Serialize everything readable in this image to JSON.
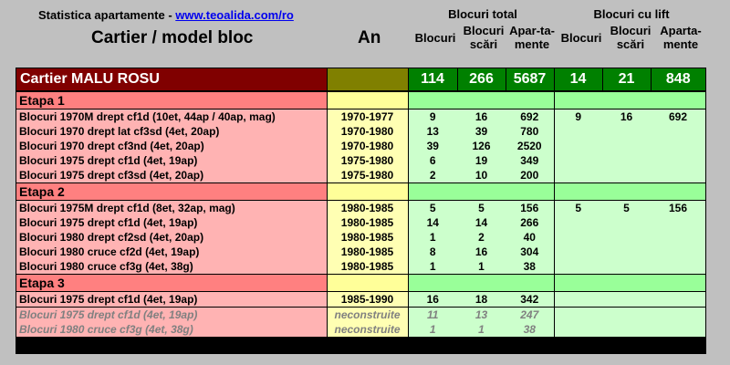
{
  "header": {
    "site_prefix": "Statistica apartamente - ",
    "site_link": "www.teoalida.com/ro",
    "col_title": "Cartier / model bloc",
    "year_title": "An",
    "group_total": "Blocuri total",
    "group_lift": "Blocuri cu lift",
    "sub": {
      "blocuri": "Blocuri",
      "blocuri_scari_1": "Blocuri",
      "blocuri_scari_2": "scări",
      "apartamente_1": "Apar-ta-",
      "apartamente_2": "mente",
      "lift_blocuri": "Blocuri",
      "lift_scari_1": "Blocuri",
      "lift_scari_2": "scări",
      "lift_apart_1": "Aparta-",
      "lift_apart_2": "mente"
    }
  },
  "district": {
    "name": "Cartier MALU ROSU",
    "blocuri": "114",
    "scari": "266",
    "apartamente": "5687",
    "lift_blocuri": "14",
    "lift_scari": "21",
    "lift_apartamente": "848"
  },
  "stages": [
    {
      "name": "Etapa 1",
      "rows": [
        {
          "name": "Blocuri 1970M drept cf1d (10et, 44ap / 40ap, mag)",
          "year": "1970-1977",
          "b": "9",
          "s": "16",
          "a": "692",
          "lb": "9",
          "ls": "16",
          "la": "692"
        },
        {
          "name": "Blocuri 1970 drept lat cf3sd (4et, 20ap)",
          "year": "1970-1980",
          "b": "13",
          "s": "39",
          "a": "780",
          "lb": "",
          "ls": "",
          "la": ""
        },
        {
          "name": "Blocuri 1970 drept cf3nd (4et, 20ap)",
          "year": "1970-1980",
          "b": "39",
          "s": "126",
          "a": "2520",
          "lb": "",
          "ls": "",
          "la": ""
        },
        {
          "name": "Blocuri 1975 drept cf1d (4et, 19ap)",
          "year": "1975-1980",
          "b": "6",
          "s": "19",
          "a": "349",
          "lb": "",
          "ls": "",
          "la": ""
        },
        {
          "name": "Blocuri 1975 drept cf3sd (4et, 20ap)",
          "year": "1975-1980",
          "b": "2",
          "s": "10",
          "a": "200",
          "lb": "",
          "ls": "",
          "la": ""
        }
      ]
    },
    {
      "name": "Etapa 2",
      "rows": [
        {
          "name": "Blocuri 1975M drept cf1d (8et, 32ap, mag)",
          "year": "1980-1985",
          "b": "5",
          "s": "5",
          "a": "156",
          "lb": "5",
          "ls": "5",
          "la": "156"
        },
        {
          "name": "Blocuri 1975 drept cf1d (4et, 19ap)",
          "year": "1980-1985",
          "b": "14",
          "s": "14",
          "a": "266",
          "lb": "",
          "ls": "",
          "la": ""
        },
        {
          "name": "Blocuri 1980 drept cf2sd (4et, 20ap)",
          "year": "1980-1985",
          "b": "1",
          "s": "2",
          "a": "40",
          "lb": "",
          "ls": "",
          "la": ""
        },
        {
          "name": "Blocuri 1980 cruce cf2d (4et, 19ap)",
          "year": "1980-1985",
          "b": "8",
          "s": "16",
          "a": "304",
          "lb": "",
          "ls": "",
          "la": ""
        },
        {
          "name": "Blocuri 1980 cruce cf3g (4et, 38g)",
          "year": "1980-1985",
          "b": "1",
          "s": "1",
          "a": "38",
          "lb": "",
          "ls": "",
          "la": ""
        }
      ]
    },
    {
      "name": "Etapa 3",
      "rows": [
        {
          "name": "Blocuri 1975 drept cf1d (4et, 19ap)",
          "year": "1985-1990",
          "b": "16",
          "s": "18",
          "a": "342",
          "lb": "",
          "ls": "",
          "la": ""
        }
      ]
    }
  ],
  "unbuilt": [
    {
      "name": "Blocuri 1975 drept cf1d (4et, 19ap)",
      "year": "neconstruite",
      "b": "11",
      "s": "13",
      "a": "247"
    },
    {
      "name": "Blocuri 1980 cruce cf3g (4et, 38g)",
      "year": "neconstruite",
      "b": "1",
      "s": "1",
      "a": "38"
    }
  ]
}
